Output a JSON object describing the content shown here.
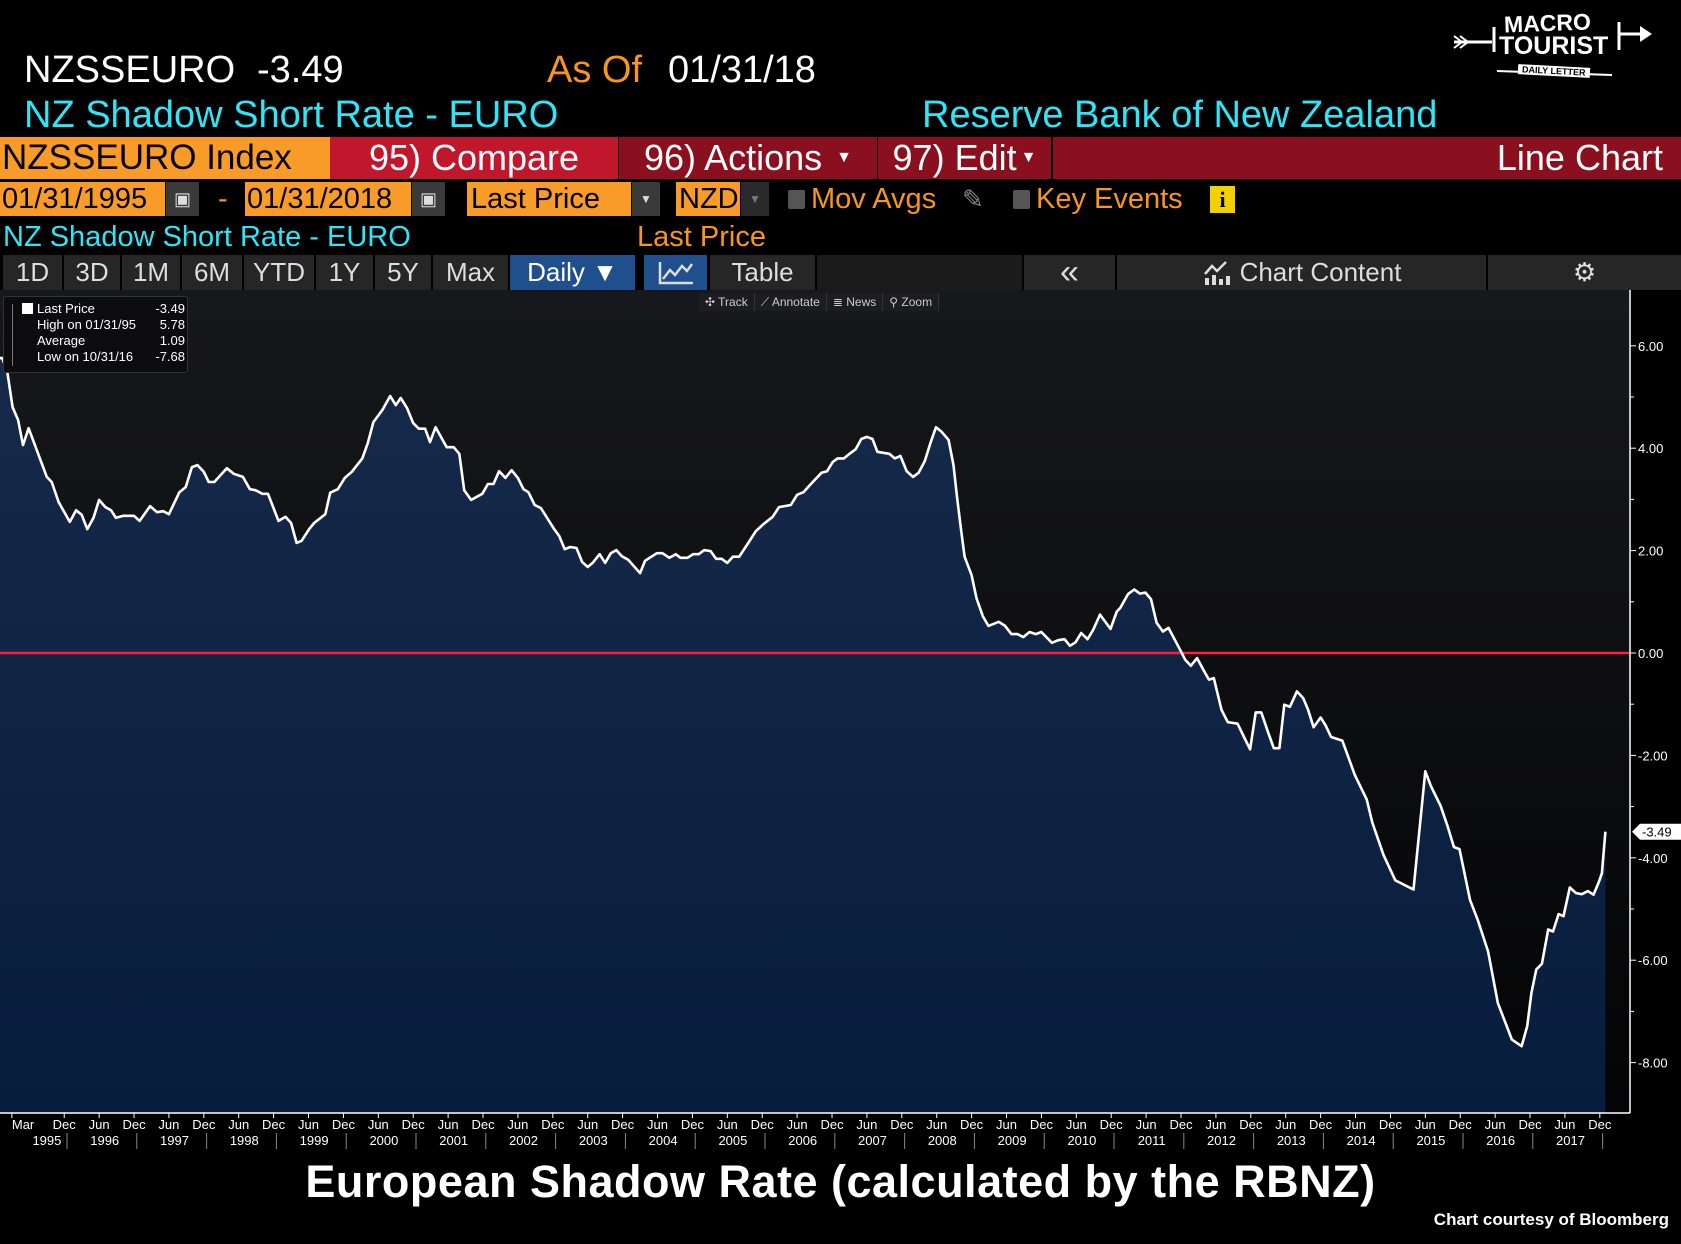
{
  "header": {
    "ticker": "NZSSEURO",
    "last_value": "-3.49",
    "as_of_label": "As Of",
    "as_of_date": "01/31/18",
    "name": "NZ Shadow Short Rate - EURO",
    "source": "Reserve Bank of New Zealand"
  },
  "logo": {
    "line1": "MACRO",
    "line2": "TOURIST",
    "line3": "DAILY LETTER"
  },
  "command_bar": {
    "security": "NZSSEURO Index",
    "compare": "95) Compare",
    "actions": "96) Actions",
    "edit": "97) Edit",
    "chart_type": "Line Chart"
  },
  "range_bar": {
    "start_date": "01/31/1995",
    "separator": "-",
    "end_date": "01/31/2018",
    "field": "Last Price",
    "currency": "NZD",
    "mov_avgs": "Mov Avgs",
    "key_events": "Key Events"
  },
  "series_bar": {
    "name": "NZ Shadow Short Rate - EURO",
    "field": "Last Price"
  },
  "toolbar": {
    "periods": [
      "1D",
      "3D",
      "1M",
      "6M",
      "YTD",
      "1Y",
      "5Y",
      "Max"
    ],
    "frequency": "Daily ▼",
    "table": "Table",
    "collapse": "«",
    "chart_content": "Chart Content"
  },
  "mini_toolbar": {
    "track": "Track",
    "annotate": "Annotate",
    "news": "News",
    "zoom": "Zoom"
  },
  "legend": {
    "last_label": "Last Price",
    "last_value": "-3.49",
    "high_label": "High on 01/31/95",
    "high_value": "5.78",
    "avg_label": "Average",
    "avg_value": "1.09",
    "low_label": "Low on 10/31/16",
    "low_value": "-7.68"
  },
  "caption": "European Shadow Rate (calculated by the RBNZ)",
  "credit": "Chart courtesy of Bloomberg",
  "colors": {
    "line": "#ffffff",
    "fill_top": "#16294a",
    "fill_bottom": "#071d3e",
    "zero_line": "#ff1f3d",
    "orange": "#f89b28",
    "cyan": "#2ee6f7",
    "compare_red": "#c1172c",
    "dark_red": "#8a1020",
    "active_blue": "#1f4f8c"
  },
  "chart_data": {
    "type": "area",
    "title": "NZ Shadow Short Rate - EURO",
    "ylabel": "",
    "xlabel": "",
    "ylim": [
      -8.8,
      7.2
    ],
    "xlim": [
      1995.0,
      2018.2
    ],
    "yticks": [
      6,
      4,
      2,
      0,
      -2,
      -4,
      -6,
      -8
    ],
    "ytick_labels": [
      "6.00",
      "4.00",
      "2.00",
      "0.00",
      "-2.00",
      "-4.00",
      "-6.00",
      "-8.00"
    ],
    "last_value_label": "-3.49",
    "reference_line": 0,
    "month_ticks": [
      {
        "x": 1995.17,
        "label": "Mar"
      },
      {
        "x": 1995.92,
        "label": "Dec"
      },
      {
        "x": 1996.42,
        "label": "Jun"
      },
      {
        "x": 1996.92,
        "label": "Dec"
      },
      {
        "x": 1997.42,
        "label": "Jun"
      },
      {
        "x": 1997.92,
        "label": "Dec"
      },
      {
        "x": 1998.42,
        "label": "Jun"
      },
      {
        "x": 1998.92,
        "label": "Dec"
      },
      {
        "x": 1999.42,
        "label": "Jun"
      },
      {
        "x": 1999.92,
        "label": "Dec"
      },
      {
        "x": 2000.42,
        "label": "Jun"
      },
      {
        "x": 2000.92,
        "label": "Dec"
      },
      {
        "x": 2001.42,
        "label": "Jun"
      },
      {
        "x": 2001.92,
        "label": "Dec"
      },
      {
        "x": 2002.42,
        "label": "Jun"
      },
      {
        "x": 2002.92,
        "label": "Dec"
      },
      {
        "x": 2003.42,
        "label": "Jun"
      },
      {
        "x": 2003.92,
        "label": "Dec"
      },
      {
        "x": 2004.42,
        "label": "Jun"
      },
      {
        "x": 2004.92,
        "label": "Dec"
      },
      {
        "x": 2005.42,
        "label": "Jun"
      },
      {
        "x": 2005.92,
        "label": "Dec"
      },
      {
        "x": 2006.42,
        "label": "Jun"
      },
      {
        "x": 2006.92,
        "label": "Dec"
      },
      {
        "x": 2007.42,
        "label": "Jun"
      },
      {
        "x": 2007.92,
        "label": "Dec"
      },
      {
        "x": 2008.42,
        "label": "Jun"
      },
      {
        "x": 2008.92,
        "label": "Dec"
      },
      {
        "x": 2009.42,
        "label": "Jun"
      },
      {
        "x": 2009.92,
        "label": "Dec"
      },
      {
        "x": 2010.42,
        "label": "Jun"
      },
      {
        "x": 2010.92,
        "label": "Dec"
      },
      {
        "x": 2011.42,
        "label": "Jun"
      },
      {
        "x": 2011.92,
        "label": "Dec"
      },
      {
        "x": 2012.42,
        "label": "Jun"
      },
      {
        "x": 2012.92,
        "label": "Dec"
      },
      {
        "x": 2013.42,
        "label": "Jun"
      },
      {
        "x": 2013.92,
        "label": "Dec"
      },
      {
        "x": 2014.42,
        "label": "Jun"
      },
      {
        "x": 2014.92,
        "label": "Dec"
      },
      {
        "x": 2015.42,
        "label": "Jun"
      },
      {
        "x": 2015.92,
        "label": "Dec"
      },
      {
        "x": 2016.42,
        "label": "Jun"
      },
      {
        "x": 2016.92,
        "label": "Dec"
      },
      {
        "x": 2017.42,
        "label": "Jun"
      },
      {
        "x": 2017.92,
        "label": "Dec"
      }
    ],
    "year_labels": [
      "1995",
      "1996",
      "1997",
      "1998",
      "1999",
      "2000",
      "2001",
      "2002",
      "2003",
      "2004",
      "2005",
      "2006",
      "2007",
      "2008",
      "2009",
      "2010",
      "2011",
      "2012",
      "2013",
      "2014",
      "2015",
      "2016",
      "2017"
    ],
    "x": [
      1995.03,
      1995.1,
      1995.18,
      1995.26,
      1995.33,
      1995.41,
      1995.67,
      1995.74,
      1995.84,
      1996.0,
      1996.09,
      1996.17,
      1996.25,
      1996.34,
      1996.42,
      1996.51,
      1996.59,
      1996.66,
      1996.77,
      1996.92,
      1997.0,
      1997.15,
      1997.25,
      1997.34,
      1997.42,
      1997.57,
      1997.66,
      1997.75,
      1997.83,
      1997.92,
      1997.99,
      1998.07,
      1998.25,
      1998.35,
      1998.48,
      1998.58,
      1998.66,
      1998.76,
      1998.84,
      1998.99,
      1999.09,
      1999.17,
      1999.25,
      1999.32,
      1999.43,
      1999.5,
      1999.66,
      1999.73,
      1999.84,
      1999.94,
      2000.04,
      2000.19,
      2000.27,
      2000.35,
      2000.48,
      2000.59,
      2000.67,
      2000.74,
      2000.83,
      2000.92,
      2001.0,
      2001.09,
      2001.16,
      2001.24,
      2001.4,
      2001.5,
      2001.58,
      2001.65,
      2001.75,
      2001.91,
      2001.99,
      2002.07,
      2002.15,
      2002.24,
      2002.33,
      2002.42,
      2002.5,
      2002.57,
      2002.66,
      2002.75,
      2002.93,
      2003.01,
      2003.09,
      2003.17,
      2003.26,
      2003.34,
      2003.42,
      2003.49,
      2003.59,
      2003.67,
      2003.75,
      2003.83,
      2003.91,
      2004.0,
      2004.17,
      2004.24,
      2004.41,
      2004.49,
      2004.59,
      2004.68,
      2004.75,
      2004.85,
      2004.93,
      2005.01,
      2005.09,
      2005.18,
      2005.26,
      2005.34,
      2005.42,
      2005.5,
      2005.59,
      2005.72,
      2005.83,
      2005.94,
      2006.07,
      2006.16,
      2006.33,
      2006.42,
      2006.51,
      2006.63,
      2006.77,
      2006.85,
      2006.93,
      2007.0,
      2007.09,
      2007.18,
      2007.26,
      2007.34,
      2007.42,
      2007.5,
      2007.57,
      2007.74,
      2007.82,
      2007.9,
      2007.99,
      2008.08,
      2008.16,
      2008.25,
      2008.33,
      2008.41,
      2008.49,
      2008.59,
      2008.66,
      2008.71,
      2008.77,
      2008.82,
      2008.92,
      2008.99,
      2009.08,
      2009.16,
      2009.31,
      2009.4,
      2009.49,
      2009.58,
      2009.66,
      2009.75,
      2009.84,
      2009.92,
      2010.07,
      2010.16,
      2010.25,
      2010.33,
      2010.41,
      2010.49,
      2010.58,
      2010.66,
      2010.76,
      2010.91,
      2011.0,
      2011.05,
      2011.16,
      2011.25,
      2011.33,
      2011.41,
      2011.49,
      2011.57,
      2011.66,
      2011.74,
      2011.87,
      2011.98,
      2012.06,
      2012.15,
      2012.24,
      2012.32,
      2012.39,
      2012.5,
      2012.59,
      2012.73,
      2012.83,
      2012.91,
      2012.99,
      2013.07,
      2013.17,
      2013.25,
      2013.33,
      2013.4,
      2013.48,
      2013.58,
      2013.67,
      2013.74,
      2013.82,
      2013.92,
      2013.99,
      2014.07,
      2014.23,
      2014.41,
      2014.58,
      2014.66,
      2014.82,
      2014.99,
      2015.25,
      2015.42,
      2015.5,
      2015.64,
      2015.74,
      2015.83,
      2015.91,
      2016.06,
      2016.17,
      2016.32,
      2016.46,
      2016.66,
      2016.8,
      2016.88,
      2016.94,
      2017.01,
      2017.09,
      2017.18,
      2017.25,
      2017.33,
      2017.4,
      2017.49,
      2017.58,
      2017.66,
      2017.75,
      2017.83,
      2017.91,
      2017.95,
      2018.0
    ],
    "values": [
      5.76,
      5.53,
      4.8,
      4.55,
      4.06,
      4.39,
      3.44,
      3.34,
      2.95,
      2.56,
      2.79,
      2.7,
      2.42,
      2.64,
      2.99,
      2.85,
      2.79,
      2.64,
      2.68,
      2.68,
      2.58,
      2.87,
      2.75,
      2.77,
      2.71,
      3.14,
      3.24,
      3.63,
      3.67,
      3.54,
      3.34,
      3.34,
      3.61,
      3.5,
      3.44,
      3.2,
      3.18,
      3.11,
      3.11,
      2.58,
      2.66,
      2.54,
      2.15,
      2.19,
      2.42,
      2.54,
      2.71,
      3.13,
      3.2,
      3.42,
      3.54,
      3.8,
      4.1,
      4.51,
      4.75,
      5.02,
      4.84,
      4.98,
      4.79,
      4.49,
      4.38,
      4.38,
      4.12,
      4.41,
      4.02,
      4.02,
      3.89,
      3.18,
      2.99,
      3.11,
      3.3,
      3.3,
      3.55,
      3.42,
      3.57,
      3.42,
      3.2,
      3.14,
      2.89,
      2.83,
      2.44,
      2.29,
      2.03,
      2.07,
      2.05,
      1.78,
      1.68,
      1.76,
      1.93,
      1.76,
      1.95,
      2.01,
      1.89,
      1.82,
      1.56,
      1.8,
      1.95,
      1.95,
      1.86,
      1.93,
      1.86,
      1.86,
      1.93,
      1.93,
      2.01,
      1.99,
      1.84,
      1.84,
      1.76,
      1.88,
      1.88,
      2.15,
      2.38,
      2.52,
      2.66,
      2.85,
      2.89,
      3.09,
      3.14,
      3.32,
      3.52,
      3.55,
      3.73,
      3.8,
      3.8,
      3.9,
      3.98,
      4.18,
      4.22,
      4.18,
      3.93,
      3.89,
      3.8,
      3.85,
      3.55,
      3.44,
      3.52,
      3.75,
      4.1,
      4.41,
      4.32,
      4.16,
      3.67,
      3.05,
      2.4,
      1.88,
      1.52,
      1.07,
      0.72,
      0.53,
      0.61,
      0.53,
      0.37,
      0.37,
      0.31,
      0.41,
      0.37,
      0.41,
      0.2,
      0.25,
      0.27,
      0.14,
      0.21,
      0.39,
      0.27,
      0.45,
      0.75,
      0.47,
      0.81,
      0.88,
      1.15,
      1.24,
      1.16,
      1.18,
      1.05,
      0.59,
      0.42,
      0.49,
      0.16,
      -0.13,
      -0.25,
      -0.1,
      -0.33,
      -0.52,
      -0.49,
      -1.11,
      -1.35,
      -1.38,
      -1.66,
      -1.88,
      -1.16,
      -1.16,
      -1.56,
      -1.86,
      -1.86,
      -1.01,
      -1.05,
      -0.75,
      -0.88,
      -1.11,
      -1.45,
      -1.26,
      -1.41,
      -1.64,
      -1.71,
      -2.38,
      -2.86,
      -3.31,
      -3.94,
      -4.44,
      -4.62,
      -2.31,
      -2.6,
      -2.99,
      -3.39,
      -3.79,
      -3.83,
      -4.82,
      -5.21,
      -5.83,
      -6.84,
      -7.55,
      -7.68,
      -7.29,
      -6.64,
      -6.18,
      -6.07,
      -5.4,
      -5.44,
      -5.1,
      -5.14,
      -4.58,
      -4.69,
      -4.71,
      -4.65,
      -4.72,
      -4.46,
      -4.3,
      -3.49
    ],
    "legend": [
      "Last Price -3.49",
      "High on 01/31/95 5.78",
      "Average 1.09",
      "Low on 10/31/16 -7.68"
    ],
    "grid": false
  }
}
